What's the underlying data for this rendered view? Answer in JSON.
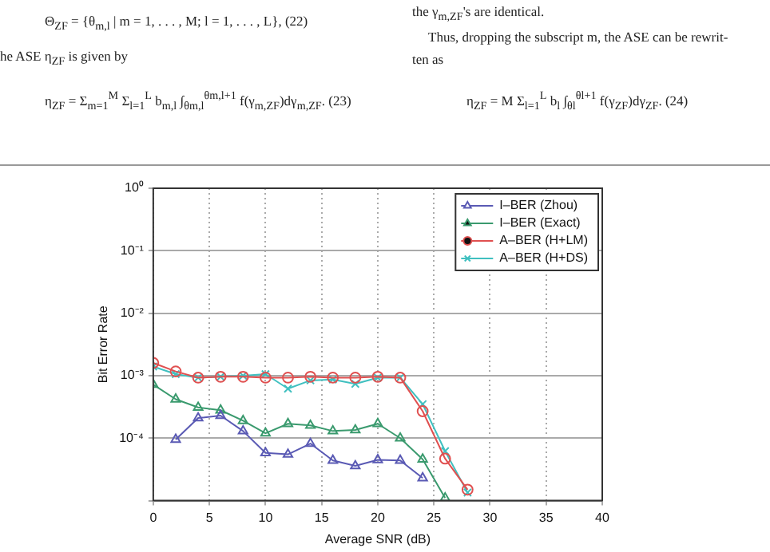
{
  "chart_data": {
    "type": "line",
    "xlabel": "Average SNR (dB)",
    "ylabel": "Bit Error Rate",
    "annotations": [
      "Θ$_{ZF}$ = {θ$_{m,l}$ | m = 1, . . . , M; l = 1, . . . , L},   (22)",
      "he ASE η$_{ZF}$ is given by",
      "η$_{ZF}$ = Σ$_{m=1}$$^{M}$ Σ$_{l=1}$$^{L}$ b$_{m,l}$ ∫$_{θm,l}$$^{θm,l+1}$ f(γ$_{m,ZF}$)dγ$_{m,ZF}$.   (23)",
      "the γ$_{m,ZF}$'s are identical.",
      "Thus, dropping the subscript m, the ASE can be rewrit-",
      "ten as",
      "η$_{ZF}$ = M Σ$_{l=1}$$^{L}$ b$_{l}$ ∫$_{θl}$$^{θl+1}$ f(γ$_{ZF}$)dγ$_{ZF}$.   (24)"
    ],
    "x": [
      0,
      2,
      4,
      6,
      8,
      10,
      12,
      14,
      16,
      18,
      20,
      22,
      24,
      26,
      28
    ],
    "series": [
      {
        "name": "I–BER (Zhou)",
        "color": "#5a5ab4",
        "marker": "triangle",
        "values": [
          null,
          9.5e-05,
          0.00021,
          0.00023,
          0.00013,
          5.8e-05,
          5.5e-05,
          8.2e-05,
          4.4e-05,
          3.6e-05,
          4.5e-05,
          4.4e-05,
          2.3e-05,
          null,
          null
        ]
      },
      {
        "name": "I–BER (Exact)",
        "color": "#3a9a6e",
        "marker": "triangle",
        "values": [
          0.00072,
          0.00042,
          0.00031,
          0.00028,
          0.00019,
          0.00012,
          0.00017,
          0.00016,
          0.00013,
          0.000135,
          0.00017,
          0.0001,
          4.6e-05,
          1.1e-05,
          null
        ]
      },
      {
        "name": "A–BER (H+LM)",
        "color": "#e05050",
        "marker": "circle",
        "values": [
          0.0016,
          0.00117,
          0.00093,
          0.00096,
          0.00096,
          0.00093,
          0.00093,
          0.00096,
          0.00093,
          0.00093,
          0.00096,
          0.00093,
          0.00027,
          4.7e-05,
          1.5e-05
        ]
      },
      {
        "name": "A–BER (H+DS)",
        "color": "#40c0c0",
        "marker": "cross",
        "values": [
          0.0014,
          0.00106,
          0.00093,
          0.00096,
          0.001,
          0.00106,
          0.00062,
          0.00084,
          0.00087,
          0.00074,
          0.00093,
          0.00093,
          0.00035,
          6.2e-05,
          1.35e-05
        ]
      }
    ],
    "xlim": [
      0,
      40
    ],
    "xticks": [
      0,
      5,
      10,
      15,
      20,
      25,
      30,
      35,
      40
    ],
    "ylim": [
      1e-05,
      1
    ],
    "yticks": [
      {
        "value": 1,
        "label": "10⁰"
      },
      {
        "value": 0.1,
        "label": "10⁻¹"
      },
      {
        "value": 0.01,
        "label": "10⁻²"
      },
      {
        "value": 0.001,
        "label": "10⁻³"
      },
      {
        "value": 0.0001,
        "label": "10⁻⁴"
      },
      {
        "value": 1e-05,
        "label": null
      }
    ],
    "log": true,
    "grid": true,
    "legend": "top right",
    "line_style": "solid"
  }
}
